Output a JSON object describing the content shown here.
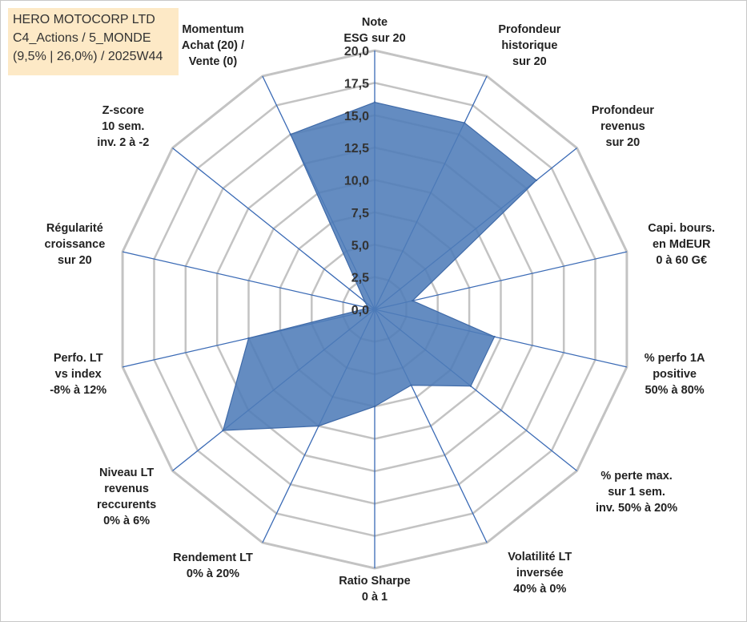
{
  "title_box": {
    "line1": "HERO MOTOCORP LTD",
    "line2": "C4_Actions / 5_MONDE",
    "line3": "(9,5% | 26,0%) / 2025W44"
  },
  "chart_data": {
    "type": "radar",
    "ylim": [
      0,
      20
    ],
    "tick_values": [
      0,
      2.5,
      5,
      7.5,
      10,
      12.5,
      15,
      17.5,
      20
    ],
    "tick_labels": [
      "0,0",
      "2,5",
      "5,0",
      "7,5",
      "10,0",
      "12,5",
      "15,0",
      "17,5",
      "20,0"
    ],
    "axes": [
      {
        "label": [
          "Note",
          "ESG sur 20"
        ],
        "value": 16.0
      },
      {
        "label": [
          "Profondeur",
          "historique",
          "sur 20"
        ],
        "value": 16.0
      },
      {
        "label": [
          "Profondeur",
          "revenus",
          "sur 20"
        ],
        "value": 16.0
      },
      {
        "label": [
          "Capi. bours.",
          "en MdEUR",
          "0 à 60 G€"
        ],
        "value": 3.0
      },
      {
        "label": [
          "% perfo 1A",
          "positive",
          "50% à 80%"
        ],
        "value": 9.5
      },
      {
        "label": [
          "% perte max.",
          "sur 1 sem.",
          "inv. 50% à 20%"
        ],
        "value": 9.5
      },
      {
        "label": [
          "Volatilité LT",
          "inversée",
          "40% à 0%"
        ],
        "value": 6.5
      },
      {
        "label": [
          "Ratio Sharpe",
          "0 à 1"
        ],
        "value": 7.5
      },
      {
        "label": [
          "Rendement LT",
          "0% à 20%"
        ],
        "value": 10.0
      },
      {
        "label": [
          "Niveau LT",
          "revenus",
          "reccurents",
          "0% à 6%"
        ],
        "value": 15.0
      },
      {
        "label": [
          "Perfo. LT",
          "vs index",
          "-8% à 12%"
        ],
        "value": 10.0
      },
      {
        "label": [
          "Régularité",
          "croissance",
          "sur 20"
        ],
        "value": 0.5
      },
      {
        "label": [
          "Z-score",
          "10 sem.",
          "inv. 2 à -2"
        ],
        "value": 1.0
      },
      {
        "label": [
          "Momentum",
          "Achat (20) /",
          "Vente (0)"
        ],
        "value": 15.0
      }
    ],
    "colors": {
      "fill": "#4f7cb8",
      "fill_stroke": "#3f6aa8",
      "grid": "#c3c3c3",
      "spoke": "#3a6ab5",
      "title_bg": "#fde9c6"
    },
    "grid": true,
    "legend": "none"
  }
}
